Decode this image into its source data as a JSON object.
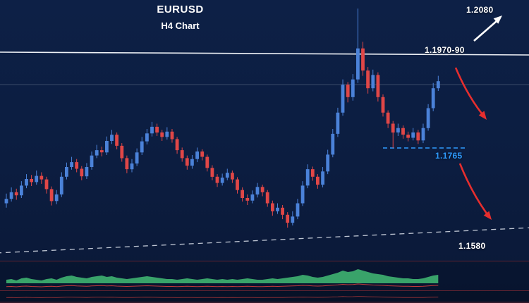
{
  "header": {
    "title": "EURUSD",
    "subtitle": "H4 Chart"
  },
  "annotations": {
    "projection_high_label": "1.2080",
    "resistance_label": "1.1970-90",
    "support_mid_label": "1.1765",
    "support_low_label": "1.1580"
  },
  "colors": {
    "background": "#0c1d40",
    "bull_candle": "#4b82d9",
    "bear_candle": "#e04747",
    "resistance_line": "#eef1f6",
    "trendline_dashed": "#dfe4ee",
    "level_blue": "#2e9bff",
    "arrow_red": "#e62e2e",
    "arrow_white": "#ffffff",
    "histogram_green": "#3cab6e",
    "signal_red": "#c03a3a",
    "separator_maroon": "#5e2330"
  },
  "chart_data": {
    "type": "candlestick",
    "symbol": "EURUSD",
    "timeframe": "H4",
    "title": "EURUSD H4 Chart",
    "legend_position": "none",
    "grid": "minimal",
    "price_axis_range": [
      1.1545,
      1.209
    ],
    "price_levels": {
      "resistance_zone": [
        1.197,
        1.199
      ],
      "projection_high": 1.208,
      "support_mid": 1.1765,
      "trendline_value_right": 1.158
    },
    "ohlc": [
      [
        1.164,
        1.1662,
        1.163,
        1.165
      ],
      [
        1.165,
        1.1676,
        1.1644,
        1.1665
      ],
      [
        1.1665,
        1.1673,
        1.1648,
        1.1658
      ],
      [
        1.1658,
        1.169,
        1.1652,
        1.168
      ],
      [
        1.168,
        1.1706,
        1.1674,
        1.1695
      ],
      [
        1.1695,
        1.1704,
        1.1679,
        1.1688
      ],
      [
        1.1688,
        1.1714,
        1.1682,
        1.1702
      ],
      [
        1.1702,
        1.171,
        1.1684,
        1.1694
      ],
      [
        1.1694,
        1.17,
        1.1662,
        1.1672
      ],
      [
        1.1672,
        1.1678,
        1.1635,
        1.1645
      ],
      [
        1.1645,
        1.167,
        1.1638,
        1.166
      ],
      [
        1.166,
        1.171,
        1.1654,
        1.17
      ],
      [
        1.17,
        1.1732,
        1.1694,
        1.1722
      ],
      [
        1.1722,
        1.1745,
        1.1716,
        1.1733
      ],
      [
        1.1733,
        1.174,
        1.171,
        1.1718
      ],
      [
        1.1718,
        1.1724,
        1.1692,
        1.1701
      ],
      [
        1.1701,
        1.1731,
        1.1695,
        1.1722
      ],
      [
        1.1722,
        1.1757,
        1.1716,
        1.1748
      ],
      [
        1.1748,
        1.1772,
        1.1742,
        1.176
      ],
      [
        1.176,
        1.1768,
        1.1746,
        1.1755
      ],
      [
        1.1755,
        1.1791,
        1.1749,
        1.1781
      ],
      [
        1.1781,
        1.1806,
        1.1774,
        1.1795
      ],
      [
        1.1795,
        1.18,
        1.1762,
        1.177
      ],
      [
        1.177,
        1.1776,
        1.1734,
        1.1742
      ],
      [
        1.1742,
        1.1748,
        1.1708,
        1.1717
      ],
      [
        1.1717,
        1.174,
        1.171,
        1.173
      ],
      [
        1.173,
        1.1764,
        1.1724,
        1.1755
      ],
      [
        1.1755,
        1.179,
        1.1749,
        1.178
      ],
      [
        1.178,
        1.1808,
        1.1773,
        1.1798
      ],
      [
        1.1798,
        1.1824,
        1.1791,
        1.1813
      ],
      [
        1.1813,
        1.182,
        1.1792,
        1.18
      ],
      [
        1.18,
        1.1806,
        1.1781,
        1.179
      ],
      [
        1.179,
        1.1812,
        1.1784,
        1.1802
      ],
      [
        1.1802,
        1.1808,
        1.1777,
        1.1785
      ],
      [
        1.1785,
        1.179,
        1.1752,
        1.176
      ],
      [
        1.176,
        1.1766,
        1.1734,
        1.1742
      ],
      [
        1.1742,
        1.1748,
        1.1716,
        1.1725
      ],
      [
        1.1725,
        1.1749,
        1.1718,
        1.174
      ],
      [
        1.174,
        1.1766,
        1.1733,
        1.1757
      ],
      [
        1.1757,
        1.1762,
        1.1737,
        1.1745
      ],
      [
        1.1745,
        1.175,
        1.1712,
        1.172
      ],
      [
        1.172,
        1.1726,
        1.1692,
        1.17
      ],
      [
        1.17,
        1.1706,
        1.1677,
        1.1686
      ],
      [
        1.1686,
        1.1707,
        1.168,
        1.1698
      ],
      [
        1.1698,
        1.1718,
        1.1692,
        1.1709
      ],
      [
        1.1709,
        1.1714,
        1.1686,
        1.1694
      ],
      [
        1.1694,
        1.1699,
        1.1662,
        1.167
      ],
      [
        1.167,
        1.1676,
        1.1644,
        1.1652
      ],
      [
        1.1652,
        1.166,
        1.1636,
        1.1646
      ],
      [
        1.1646,
        1.1669,
        1.164,
        1.166
      ],
      [
        1.166,
        1.1686,
        1.1653,
        1.1677
      ],
      [
        1.1677,
        1.1682,
        1.1656,
        1.1665
      ],
      [
        1.1665,
        1.167,
        1.1632,
        1.164
      ],
      [
        1.164,
        1.1646,
        1.1612,
        1.1622
      ],
      [
        1.1622,
        1.164,
        1.1616,
        1.163
      ],
      [
        1.163,
        1.1636,
        1.1604,
        1.1614
      ],
      [
        1.1614,
        1.162,
        1.1585,
        1.1596
      ],
      [
        1.1596,
        1.1622,
        1.159,
        1.161
      ],
      [
        1.161,
        1.165,
        1.1604,
        1.164
      ],
      [
        1.164,
        1.169,
        1.1634,
        1.168
      ],
      [
        1.168,
        1.1728,
        1.1674,
        1.1717
      ],
      [
        1.1717,
        1.1723,
        1.1691,
        1.17
      ],
      [
        1.17,
        1.1706,
        1.1673,
        1.1682
      ],
      [
        1.1682,
        1.1722,
        1.1676,
        1.1712
      ],
      [
        1.1712,
        1.1761,
        1.1706,
        1.175
      ],
      [
        1.175,
        1.1808,
        1.1744,
        1.1797
      ],
      [
        1.1797,
        1.1856,
        1.179,
        1.1845
      ],
      [
        1.1845,
        1.192,
        1.1838,
        1.1908
      ],
      [
        1.1908,
        1.1914,
        1.1868,
        1.188
      ],
      [
        1.188,
        1.1932,
        1.1872,
        1.192
      ],
      [
        1.192,
        1.208,
        1.1912,
        1.199
      ],
      [
        1.199,
        1.2005,
        1.1928,
        1.194
      ],
      [
        1.194,
        1.1948,
        1.1888,
        1.19
      ],
      [
        1.19,
        1.1942,
        1.1893,
        1.193
      ],
      [
        1.193,
        1.1936,
        1.187,
        1.188
      ],
      [
        1.188,
        1.1886,
        1.1836,
        1.1845
      ],
      [
        1.1845,
        1.185,
        1.181,
        1.182
      ],
      [
        1.182,
        1.1826,
        1.1765,
        1.18
      ],
      [
        1.18,
        1.182,
        1.1792,
        1.181
      ],
      [
        1.181,
        1.1816,
        1.1786,
        1.1795
      ],
      [
        1.1795,
        1.1802,
        1.178,
        1.1788
      ],
      [
        1.1788,
        1.181,
        1.1782,
        1.18
      ],
      [
        1.18,
        1.1806,
        1.1774,
        1.1782
      ],
      [
        1.1782,
        1.182,
        1.1776,
        1.181
      ],
      [
        1.181,
        1.1864,
        1.1804,
        1.1855
      ],
      [
        1.1855,
        1.1912,
        1.1848,
        1.19
      ],
      [
        1.19,
        1.1928,
        1.1894,
        1.1916
      ]
    ],
    "indicator": {
      "name": "volume-histogram",
      "values": [
        5,
        6,
        4,
        7,
        8,
        6,
        5,
        4,
        6,
        7,
        5,
        8,
        10,
        11,
        9,
        8,
        7,
        9,
        10,
        11,
        9,
        10,
        8,
        7,
        6,
        7,
        8,
        9,
        10,
        9,
        8,
        7,
        6,
        6,
        5,
        6,
        7,
        6,
        5,
        6,
        7,
        6,
        5,
        6,
        5,
        6,
        5,
        6,
        7,
        6,
        5,
        5,
        6,
        7,
        6,
        7,
        8,
        9,
        10,
        12,
        11,
        9,
        8,
        9,
        11,
        13,
        15,
        18,
        16,
        17,
        20,
        18,
        16,
        14,
        13,
        12,
        10,
        9,
        8,
        7,
        7,
        6,
        6,
        7,
        9,
        11,
        12
      ]
    }
  }
}
